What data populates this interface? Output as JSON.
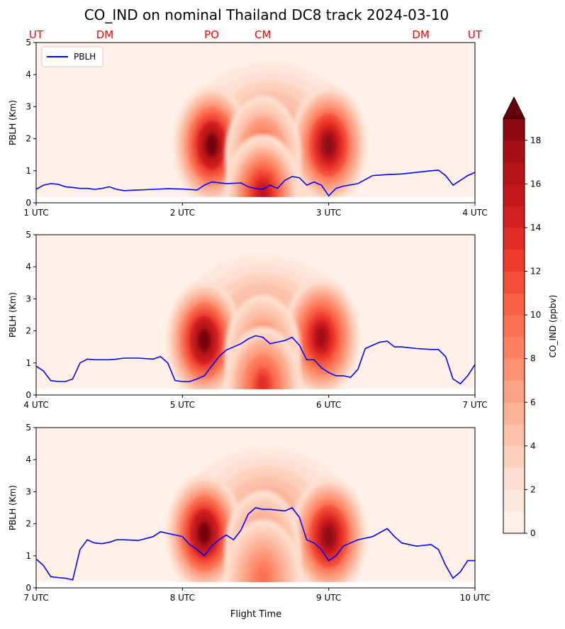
{
  "chart_data": {
    "type": "contour",
    "title": "CO_IND on nominal Thailand DC8 track 2024-03-10",
    "xlabel": "Flight Time",
    "ylabel": "PBLH (Km)",
    "ylim": [
      0,
      5
    ],
    "yticks": [
      "0",
      "1",
      "2",
      "3",
      "4",
      "5"
    ],
    "legend": {
      "label": "PBLH",
      "placement": "top-left",
      "color": "#0000ff"
    },
    "location_labels": [
      {
        "text": "UT",
        "x": 1.0
      },
      {
        "text": "DM",
        "x": 1.47
      },
      {
        "text": "PO",
        "x": 2.2
      },
      {
        "text": "CM",
        "x": 2.55
      },
      {
        "text": "DM",
        "x": 3.63
      },
      {
        "text": "UT",
        "x": 4.0
      }
    ],
    "location_label_color": "#ff0000",
    "colorbar": {
      "label": "CO_IND (ppbv)",
      "range": [
        0,
        19
      ],
      "ticks": [
        "0",
        "2",
        "4",
        "6",
        "8",
        "10",
        "12",
        "14",
        "16",
        "18"
      ],
      "extend": "max",
      "colormap": "Reds"
    },
    "panels": [
      {
        "xlim": [
          1,
          4
        ],
        "xticks": [
          "1 UTC",
          "2 UTC",
          "3 UTC",
          "4 UTC"
        ],
        "pblh": [
          [
            1.0,
            0.42
          ],
          [
            1.05,
            0.55
          ],
          [
            1.1,
            0.6
          ],
          [
            1.15,
            0.58
          ],
          [
            1.2,
            0.5
          ],
          [
            1.25,
            0.48
          ],
          [
            1.3,
            0.45
          ],
          [
            1.35,
            0.45
          ],
          [
            1.4,
            0.42
          ],
          [
            1.45,
            0.45
          ],
          [
            1.5,
            0.5
          ],
          [
            1.55,
            0.42
          ],
          [
            1.6,
            0.38
          ],
          [
            1.7,
            0.4
          ],
          [
            1.8,
            0.42
          ],
          [
            1.9,
            0.44
          ],
          [
            2.0,
            0.43
          ],
          [
            2.1,
            0.4
          ],
          [
            2.15,
            0.55
          ],
          [
            2.2,
            0.65
          ],
          [
            2.3,
            0.6
          ],
          [
            2.4,
            0.62
          ],
          [
            2.45,
            0.5
          ],
          [
            2.5,
            0.45
          ],
          [
            2.55,
            0.42
          ],
          [
            2.6,
            0.55
          ],
          [
            2.65,
            0.45
          ],
          [
            2.7,
            0.7
          ],
          [
            2.75,
            0.82
          ],
          [
            2.8,
            0.78
          ],
          [
            2.85,
            0.55
          ],
          [
            2.9,
            0.65
          ],
          [
            2.95,
            0.55
          ],
          [
            3.0,
            0.22
          ],
          [
            3.05,
            0.45
          ],
          [
            3.1,
            0.52
          ],
          [
            3.2,
            0.6
          ],
          [
            3.3,
            0.85
          ],
          [
            3.4,
            0.88
          ],
          [
            3.5,
            0.9
          ],
          [
            3.6,
            0.95
          ],
          [
            3.7,
            1.0
          ],
          [
            3.75,
            1.02
          ],
          [
            3.8,
            0.85
          ],
          [
            3.85,
            0.55
          ],
          [
            3.9,
            0.7
          ],
          [
            3.95,
            0.85
          ],
          [
            4.0,
            0.95
          ]
        ],
        "plumes": [
          {
            "x": 2.2,
            "y": 1.8,
            "peak": 19
          },
          {
            "x": 3.0,
            "y": 1.8,
            "peak": 18
          },
          {
            "x": 2.55,
            "y": 1.5,
            "peak": 12
          },
          {
            "x": 2.55,
            "y": 0.3,
            "peak": 15
          }
        ]
      },
      {
        "xlim": [
          4,
          7
        ],
        "xticks": [
          "4 UTC",
          "5 UTC",
          "6 UTC",
          "7 UTC"
        ],
        "pblh": [
          [
            4.0,
            0.9
          ],
          [
            4.05,
            0.75
          ],
          [
            4.1,
            0.45
          ],
          [
            4.15,
            0.42
          ],
          [
            4.2,
            0.42
          ],
          [
            4.25,
            0.5
          ],
          [
            4.3,
            1.0
          ],
          [
            4.35,
            1.12
          ],
          [
            4.4,
            1.1
          ],
          [
            4.45,
            1.1
          ],
          [
            4.5,
            1.1
          ],
          [
            4.55,
            1.12
          ],
          [
            4.6,
            1.15
          ],
          [
            4.7,
            1.15
          ],
          [
            4.8,
            1.12
          ],
          [
            4.85,
            1.2
          ],
          [
            4.9,
            1.0
          ],
          [
            4.95,
            0.45
          ],
          [
            5.0,
            0.42
          ],
          [
            5.05,
            0.42
          ],
          [
            5.1,
            0.5
          ],
          [
            5.15,
            0.6
          ],
          [
            5.2,
            0.9
          ],
          [
            5.25,
            1.2
          ],
          [
            5.3,
            1.4
          ],
          [
            5.35,
            1.5
          ],
          [
            5.4,
            1.6
          ],
          [
            5.45,
            1.75
          ],
          [
            5.5,
            1.85
          ],
          [
            5.55,
            1.8
          ],
          [
            5.6,
            1.6
          ],
          [
            5.65,
            1.65
          ],
          [
            5.7,
            1.7
          ],
          [
            5.75,
            1.8
          ],
          [
            5.8,
            1.55
          ],
          [
            5.85,
            1.1
          ],
          [
            5.9,
            1.1
          ],
          [
            5.95,
            0.85
          ],
          [
            6.0,
            0.7
          ],
          [
            6.05,
            0.6
          ],
          [
            6.1,
            0.6
          ],
          [
            6.15,
            0.55
          ],
          [
            6.2,
            0.8
          ],
          [
            6.25,
            1.45
          ],
          [
            6.3,
            1.55
          ],
          [
            6.35,
            1.65
          ],
          [
            6.4,
            1.68
          ],
          [
            6.45,
            1.5
          ],
          [
            6.5,
            1.5
          ],
          [
            6.6,
            1.45
          ],
          [
            6.7,
            1.42
          ],
          [
            6.75,
            1.42
          ],
          [
            6.8,
            1.2
          ],
          [
            6.85,
            0.5
          ],
          [
            6.9,
            0.35
          ],
          [
            6.95,
            0.6
          ],
          [
            7.0,
            0.95
          ]
        ],
        "plumes": [
          {
            "x": 5.15,
            "y": 1.7,
            "peak": 19
          },
          {
            "x": 5.95,
            "y": 1.8,
            "peak": 17
          },
          {
            "x": 5.55,
            "y": 1.3,
            "peak": 11
          },
          {
            "x": 5.55,
            "y": 0.3,
            "peak": 13
          }
        ]
      },
      {
        "xlim": [
          7,
          10
        ],
        "xticks": [
          "7 UTC",
          "8 UTC",
          "9 UTC",
          "10 UTC"
        ],
        "pblh": [
          [
            7.0,
            0.9
          ],
          [
            7.05,
            0.7
          ],
          [
            7.1,
            0.35
          ],
          [
            7.15,
            0.32
          ],
          [
            7.2,
            0.3
          ],
          [
            7.25,
            0.25
          ],
          [
            7.3,
            1.2
          ],
          [
            7.35,
            1.5
          ],
          [
            7.4,
            1.4
          ],
          [
            7.45,
            1.38
          ],
          [
            7.5,
            1.42
          ],
          [
            7.55,
            1.5
          ],
          [
            7.6,
            1.5
          ],
          [
            7.7,
            1.48
          ],
          [
            7.8,
            1.6
          ],
          [
            7.85,
            1.75
          ],
          [
            7.9,
            1.7
          ],
          [
            8.0,
            1.6
          ],
          [
            8.05,
            1.35
          ],
          [
            8.1,
            1.2
          ],
          [
            8.15,
            1.0
          ],
          [
            8.2,
            1.3
          ],
          [
            8.25,
            1.5
          ],
          [
            8.3,
            1.65
          ],
          [
            8.35,
            1.5
          ],
          [
            8.4,
            1.8
          ],
          [
            8.45,
            2.3
          ],
          [
            8.5,
            2.5
          ],
          [
            8.55,
            2.45
          ],
          [
            8.6,
            2.45
          ],
          [
            8.7,
            2.4
          ],
          [
            8.75,
            2.5
          ],
          [
            8.8,
            2.2
          ],
          [
            8.85,
            1.5
          ],
          [
            8.9,
            1.4
          ],
          [
            8.95,
            1.2
          ],
          [
            9.0,
            0.85
          ],
          [
            9.05,
            1.0
          ],
          [
            9.1,
            1.3
          ],
          [
            9.2,
            1.5
          ],
          [
            9.3,
            1.6
          ],
          [
            9.4,
            1.85
          ],
          [
            9.45,
            1.6
          ],
          [
            9.5,
            1.4
          ],
          [
            9.6,
            1.3
          ],
          [
            9.7,
            1.35
          ],
          [
            9.75,
            1.2
          ],
          [
            9.8,
            0.7
          ],
          [
            9.85,
            0.3
          ],
          [
            9.9,
            0.5
          ],
          [
            9.95,
            0.85
          ],
          [
            10.0,
            0.85
          ]
        ],
        "plumes": [
          {
            "x": 8.15,
            "y": 1.7,
            "peak": 19
          },
          {
            "x": 9.0,
            "y": 1.6,
            "peak": 18
          },
          {
            "x": 8.55,
            "y": 1.2,
            "peak": 10
          },
          {
            "x": 8.55,
            "y": 0.3,
            "peak": 9
          }
        ]
      }
    ]
  }
}
